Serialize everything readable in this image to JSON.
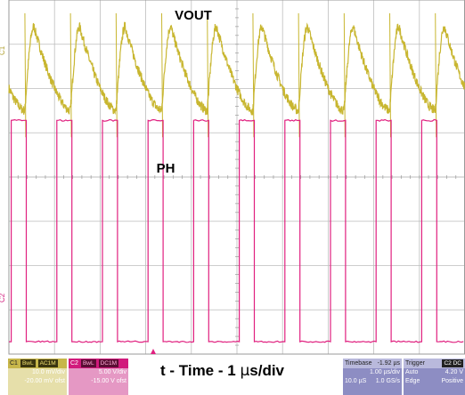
{
  "chart_data": [
    {
      "type": "line",
      "title": "VOUT",
      "channel": "C1",
      "color": "#c8b630",
      "waveform": "ripple",
      "period_us": 1.0,
      "cycles": 10,
      "x_range_us": [
        0,
        10
      ],
      "y_unit": "mV",
      "y_divisions": 4,
      "y_ripple_mV": [
        -5,
        14
      ],
      "notes_visible": []
    },
    {
      "type": "line",
      "title": "PH",
      "channel": "C2",
      "color": "#e0207f",
      "waveform": "square",
      "period_us": 1.0,
      "duty_cycle": 0.33,
      "cycles": 10,
      "x_range_us": [
        0,
        10
      ],
      "y_unit": "V",
      "y_divisions": 4,
      "levels_V": [
        0,
        25
      ]
    }
  ],
  "axis": {
    "xlabel_prefix": "t - Time - 1 ",
    "xlabel_mu": "μ",
    "xlabel_suffix": "s/div",
    "x_divisions": 10,
    "y_divisions_total": 8,
    "grid": true
  },
  "markers": {
    "c1": "C1",
    "c2": "C2"
  },
  "panels": {
    "c1": {
      "id": "C1",
      "tag1": "BwL",
      "tag2": "AC1M",
      "vdiv": "10.0 mV/div",
      "offset": "-20.00 mV ofst"
    },
    "c2": {
      "id": "C2",
      "tag1": "BwL",
      "tag2": "DC1M",
      "vdiv": "5.00 V/div",
      "offset": "-15.00 V ofst"
    },
    "timebase": {
      "label": "Timebase",
      "pos": "-1.92 µs",
      "per_div": "1.00 µs/div",
      "span": "10.0 µS",
      "rate": "1.0 GS/s"
    },
    "trigger": {
      "label": "Trigger",
      "tag": "C2 DC",
      "mode": "Auto",
      "level": "4.20 V",
      "type": "Edge",
      "slope": "Positive"
    }
  },
  "colors": {
    "grid": "#bdbdbd",
    "frame": "#9a9a9a",
    "vout": "#c8b630",
    "ph": "#e0207f",
    "trigger_marker": "#e0207f"
  }
}
